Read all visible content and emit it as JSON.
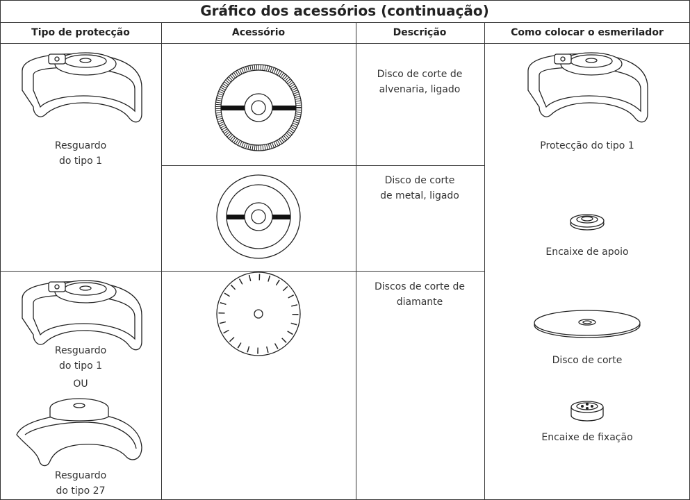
{
  "title": "Gráfico dos acessórios (continuação)",
  "table": {
    "headers": [
      "Tipo de protecção",
      "Acessório",
      "Descrição",
      "Como colocar o esmerilador"
    ],
    "protection": [
      {
        "label": [
          "Resguardo",
          "do tipo 1"
        ]
      },
      {
        "label": [
          "Resguardo",
          "do tipo 1"
        ],
        "or": "OU",
        "label2": [
          "Resguardo",
          "do tipo 27"
        ]
      }
    ],
    "descriptions": [
      [
        "Disco de corte de",
        "alvenaria, ligado"
      ],
      [
        "Disco de corte",
        "de metal, ligado"
      ],
      [
        "Discos de corte de",
        "diamante"
      ]
    ],
    "assembly": [
      "Protecção do tipo 1",
      "Encaixe de apoio",
      "Disco de corte",
      "Encaixe de fixação"
    ]
  }
}
